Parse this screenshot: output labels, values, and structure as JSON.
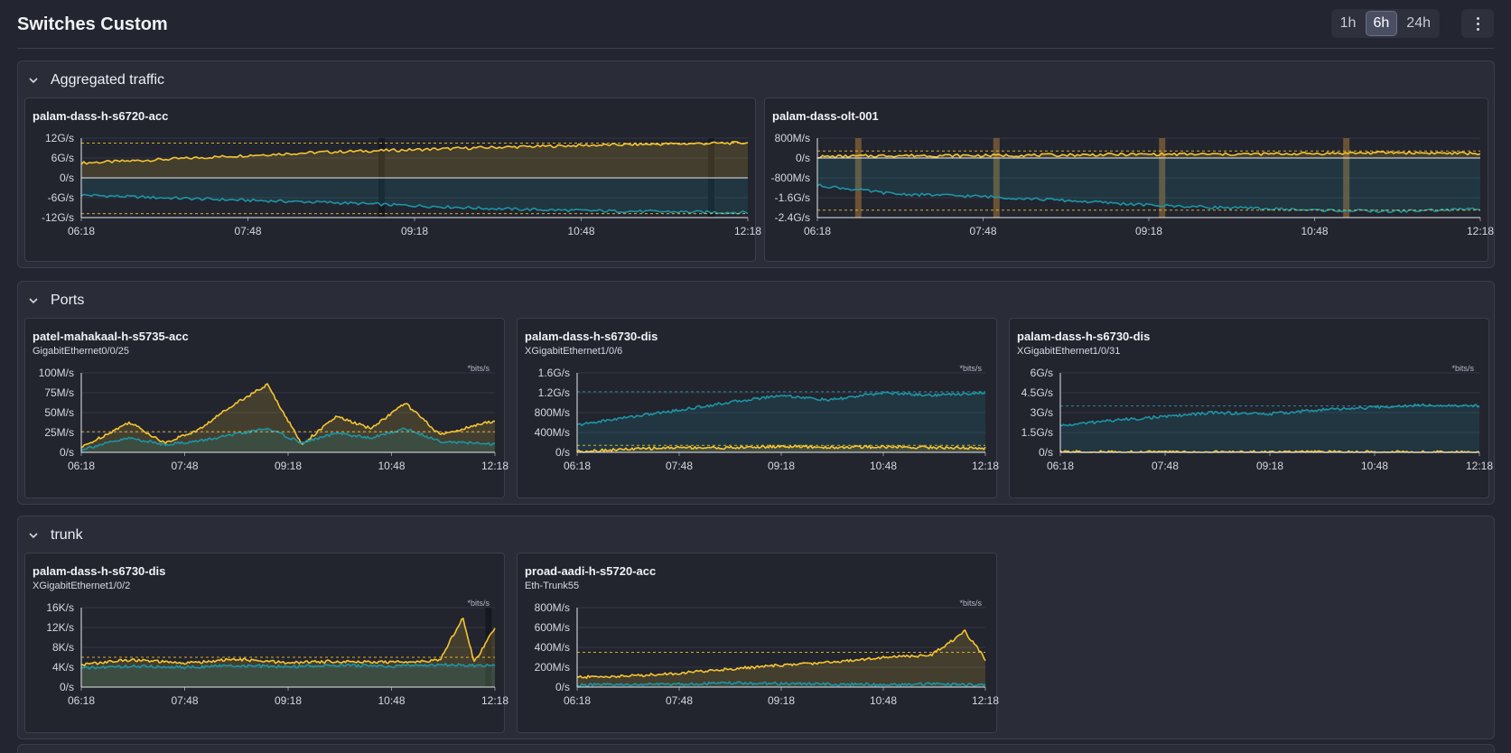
{
  "page": {
    "title": "Switches Custom"
  },
  "time_range": {
    "options": [
      "1h",
      "6h",
      "24h"
    ],
    "selected": "6h"
  },
  "menu": {
    "icon": "more-vertical-icon"
  },
  "colors": {
    "inbound": "#f5c431",
    "outbound": "#1c95a6",
    "background": "#232530"
  },
  "sections": [
    {
      "title": "Aggregated traffic",
      "panels": [
        {
          "title": "palam-dass-h-s6720-acc",
          "subtitle": "",
          "unit": "",
          "chart_data": {
            "type": "area",
            "x_ticks": [
              "06:18",
              "07:48",
              "09:18",
              "10:48",
              "12:18"
            ],
            "y_ticks": [
              "12G/s",
              "6G/s",
              "0/s",
              "-6G/s",
              "-12G/s"
            ],
            "ylim": [
              -12,
              12
            ],
            "y_unit": "G/s",
            "series": [
              {
                "color": "#f5c431",
                "x": [
                  "06:18",
                  "07:00",
                  "07:48",
                  "08:30",
                  "09:18",
                  "10:00",
                  "10:48",
                  "11:30",
                  "12:18"
                ],
                "y": [
                  4.5,
                  5.5,
                  6.8,
                  7.8,
                  8.5,
                  9.2,
                  9.8,
                  10.2,
                  10.6
                ]
              },
              {
                "color": "#1c95a6",
                "x": [
                  "06:18",
                  "07:00",
                  "07:48",
                  "08:30",
                  "09:18",
                  "10:00",
                  "10:48",
                  "11:30",
                  "12:18"
                ],
                "y": [
                  -5.2,
                  -6.0,
                  -6.8,
                  -7.4,
                  -8.4,
                  -9.3,
                  -9.9,
                  -10.2,
                  -10.5
                ]
              }
            ],
            "threshold_lines": [
              10.5,
              -10.8
            ],
            "gaps": [
              "09:00",
              "11:58"
            ]
          }
        },
        {
          "title": "palam-dass-olt-001",
          "subtitle": "",
          "unit": "",
          "chart_data": {
            "type": "area",
            "x_ticks": [
              "06:18",
              "07:48",
              "09:18",
              "10:48",
              "12:18"
            ],
            "y_ticks": [
              "800M/s",
              "0/s",
              "-800M/s",
              "-1.6G/s",
              "-2.4G/s"
            ],
            "ylim": [
              -2.4,
              0.8
            ],
            "y_unit": "G/s",
            "series": [
              {
                "color": "#f5c431",
                "x": [
                  "06:18",
                  "07:00",
                  "07:48",
                  "08:30",
                  "09:18",
                  "10:00",
                  "10:48",
                  "11:30",
                  "12:18"
                ],
                "y": [
                  0.05,
                  0.1,
                  0.1,
                  0.12,
                  0.15,
                  0.15,
                  0.18,
                  0.22,
                  0.18
                ]
              },
              {
                "color": "#1c95a6",
                "x": [
                  "06:18",
                  "07:00",
                  "07:48",
                  "08:30",
                  "09:18",
                  "10:00",
                  "10:48",
                  "11:30",
                  "12:18"
                ],
                "y": [
                  -1.1,
                  -1.45,
                  -1.55,
                  -1.7,
                  -1.9,
                  -2.0,
                  -2.1,
                  -2.15,
                  -2.05
                ]
              }
            ],
            "threshold_lines": [
              0.28,
              -2.1
            ],
            "gaps": [
              "06:40",
              "07:55",
              "09:25",
              "11:05"
            ]
          }
        }
      ]
    },
    {
      "title": "Ports",
      "panels": [
        {
          "title": "patel-mahakaal-h-s5735-acc",
          "subtitle": "GigabitEthernet0/0/25",
          "unit": "*bits/s",
          "chart_data": {
            "type": "line",
            "x_ticks": [
              "06:18",
              "07:48",
              "09:18",
              "10:48",
              "12:18"
            ],
            "y_ticks": [
              "100M/s",
              "75M/s",
              "50M/s",
              "25M/s",
              "0/s"
            ],
            "ylim": [
              0,
              100
            ],
            "y_unit": "M/s",
            "series": [
              {
                "color": "#f5c431",
                "x": [
                  "06:18",
                  "07:00",
                  "07:30",
                  "08:00",
                  "08:30",
                  "09:00",
                  "09:30",
                  "10:00",
                  "10:30",
                  "11:00",
                  "11:30",
                  "12:18"
                ],
                "y": [
                  6,
                  38,
                  12,
                  28,
                  60,
                  85,
                  10,
                  45,
                  30,
                  62,
                  22,
                  40
                ]
              },
              {
                "color": "#1c95a6",
                "x": [
                  "06:18",
                  "07:00",
                  "07:30",
                  "08:00",
                  "08:30",
                  "09:00",
                  "09:30",
                  "10:00",
                  "10:30",
                  "11:00",
                  "11:30",
                  "12:18"
                ],
                "y": [
                  4,
                  18,
                  10,
                  14,
                  22,
                  30,
                  12,
                  24,
                  18,
                  30,
                  14,
                  10
                ]
              }
            ],
            "threshold_lines": [
              26
            ],
            "gaps": []
          }
        },
        {
          "title": "palam-dass-h-s6730-dis",
          "subtitle": "XGigabitEthernet1/0/6",
          "unit": "*bits/s",
          "chart_data": {
            "type": "area",
            "x_ticks": [
              "06:18",
              "07:48",
              "09:18",
              "10:48",
              "12:18"
            ],
            "y_ticks": [
              "1.6G/s",
              "1.2G/s",
              "800M/s",
              "400M/s",
              "0/s"
            ],
            "ylim": [
              0,
              1.6
            ],
            "y_unit": "G/s",
            "series": [
              {
                "color": "#1c95a6",
                "x": [
                  "06:18",
                  "07:00",
                  "07:48",
                  "08:30",
                  "09:18",
                  "10:00",
                  "10:48",
                  "11:30",
                  "12:18"
                ],
                "y": [
                  0.55,
                  0.7,
                  0.85,
                  1.0,
                  1.15,
                  1.05,
                  1.2,
                  1.15,
                  1.2
                ]
              },
              {
                "color": "#f5c431",
                "x": [
                  "06:18",
                  "07:00",
                  "07:48",
                  "08:30",
                  "09:18",
                  "10:00",
                  "10:48",
                  "11:30",
                  "12:18"
                ],
                "y": [
                  0.02,
                  0.06,
                  0.1,
                  0.09,
                  0.12,
                  0.1,
                  0.11,
                  0.1,
                  0.08
                ]
              }
            ],
            "threshold_lines": [
              1.22,
              0.14
            ],
            "gaps": []
          }
        },
        {
          "title": "palam-dass-h-s6730-dis",
          "subtitle": "XGigabitEthernet1/0/31",
          "unit": "*bits/s",
          "chart_data": {
            "type": "area",
            "x_ticks": [
              "06:18",
              "07:48",
              "09:18",
              "10:48",
              "12:18"
            ],
            "y_ticks": [
              "6G/s",
              "4.5G/s",
              "3G/s",
              "1.5G/s",
              "0/s"
            ],
            "ylim": [
              0,
              6
            ],
            "y_unit": "G/s",
            "series": [
              {
                "color": "#1c95a6",
                "x": [
                  "06:18",
                  "07:00",
                  "07:48",
                  "08:30",
                  "09:18",
                  "10:00",
                  "10:48",
                  "11:30",
                  "12:18"
                ],
                "y": [
                  2.0,
                  2.4,
                  2.7,
                  3.0,
                  2.9,
                  3.2,
                  3.4,
                  3.6,
                  3.5
                ]
              },
              {
                "color": "#f5c431",
                "x": [
                  "06:18",
                  "12:18"
                ],
                "y": [
                  0.02,
                  0.02
                ]
              }
            ],
            "threshold_lines": [
              3.5
            ],
            "gaps": []
          }
        }
      ]
    },
    {
      "title": "trunk",
      "panels": [
        {
          "title": "palam-dass-h-s6730-dis",
          "subtitle": "XGigabitEthernet1/0/2",
          "unit": "*bits/s",
          "chart_data": {
            "type": "line",
            "x_ticks": [
              "06:18",
              "07:48",
              "09:18",
              "10:48",
              "12:18"
            ],
            "y_ticks": [
              "16K/s",
              "12K/s",
              "8K/s",
              "4K/s",
              "0/s"
            ],
            "ylim": [
              0,
              16
            ],
            "y_unit": "K/s",
            "series": [
              {
                "color": "#f5c431",
                "x": [
                  "06:18",
                  "07:00",
                  "07:48",
                  "08:30",
                  "09:18",
                  "10:00",
                  "10:48",
                  "11:30",
                  "11:50",
                  "12:00",
                  "12:18"
                ],
                "y": [
                  4.5,
                  5.5,
                  4.8,
                  5.6,
                  4.9,
                  5.2,
                  5.0,
                  5.4,
                  14,
                  5,
                  12
                ]
              },
              {
                "color": "#1c95a6",
                "x": [
                  "06:18",
                  "07:00",
                  "07:48",
                  "08:30",
                  "09:18",
                  "10:00",
                  "10:48",
                  "11:30",
                  "12:18"
                ],
                "y": [
                  3.8,
                  4.2,
                  4.0,
                  4.3,
                  4.1,
                  4.4,
                  4.2,
                  4.5,
                  4.3
                ]
              }
            ],
            "threshold_lines": [
              6
            ],
            "gaps": [
              "12:12"
            ]
          }
        },
        {
          "title": "proad-aadi-h-s5720-acc",
          "subtitle": "Eth-Trunk55",
          "unit": "*bits/s",
          "chart_data": {
            "type": "area",
            "x_ticks": [
              "06:18",
              "07:48",
              "09:18",
              "10:48",
              "12:18"
            ],
            "y_ticks": [
              "800M/s",
              "600M/s",
              "400M/s",
              "200M/s",
              "0/s"
            ],
            "ylim": [
              0,
              800
            ],
            "y_unit": "M/s",
            "series": [
              {
                "color": "#f5c431",
                "x": [
                  "06:18",
                  "07:00",
                  "07:48",
                  "08:30",
                  "09:18",
                  "10:00",
                  "10:48",
                  "11:30",
                  "12:00",
                  "12:18"
                ],
                "y": [
                  100,
                  110,
                  140,
                  180,
                  220,
                  250,
                  300,
                  320,
                  560,
                  280
                ]
              },
              {
                "color": "#1c95a6",
                "x": [
                  "06:18",
                  "07:00",
                  "07:48",
                  "08:30",
                  "09:18",
                  "10:00",
                  "10:48",
                  "11:30",
                  "12:18"
                ],
                "y": [
                  20,
                  25,
                  30,
                  40,
                  35,
                  30,
                  25,
                  30,
                  20
                ]
              }
            ],
            "threshold_lines": [
              350
            ],
            "gaps": []
          }
        }
      ]
    }
  ]
}
